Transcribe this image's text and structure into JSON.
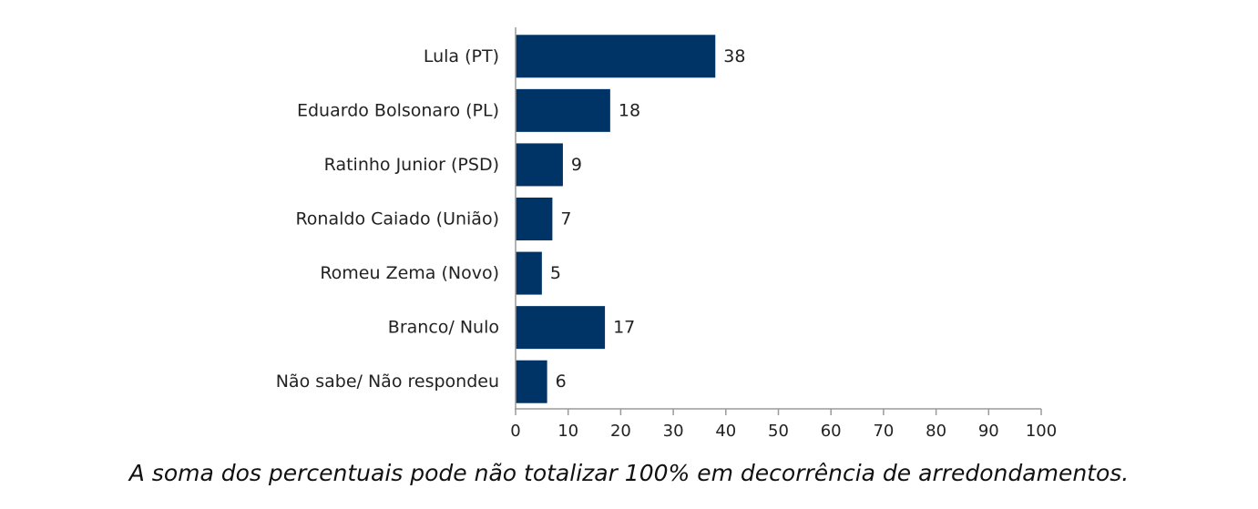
{
  "chart_data": {
    "type": "bar",
    "orientation": "horizontal",
    "categories": [
      "Lula (PT)",
      "Eduardo Bolsonaro (PL)",
      "Ratinho Junior (PSD)",
      "Ronaldo Caiado (União)",
      "Romeu Zema (Novo)",
      "Branco/ Nulo",
      "Não sabe/ Não respondeu"
    ],
    "values": [
      38,
      18,
      9,
      7,
      5,
      17,
      6
    ],
    "xlim": [
      0,
      100
    ],
    "xticks": [
      0,
      10,
      20,
      30,
      40,
      50,
      60,
      70,
      80,
      90,
      100
    ],
    "bar_color": "#003366",
    "grid": false,
    "data_labels": true
  },
  "footnote": "A soma dos percentuais pode não totalizar 100% em decorrência de arredondamentos."
}
